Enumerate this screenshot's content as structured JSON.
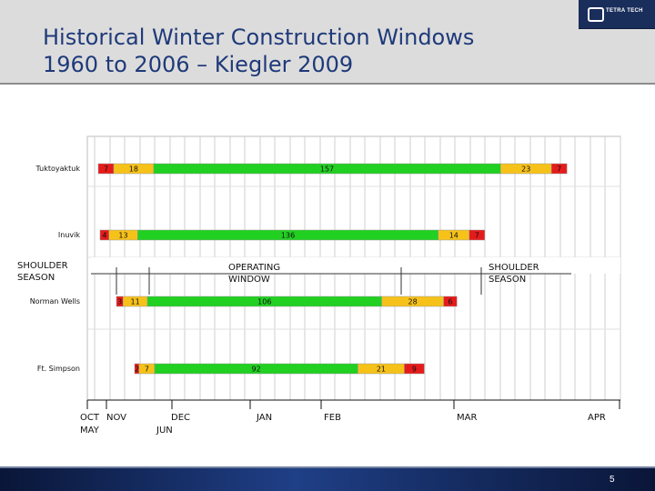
{
  "slide": {
    "title_line1": "Historical Winter Construction Windows",
    "title_line2": "1960 to 2006 – Kiegler 2009",
    "page_number": "5"
  },
  "logo": {
    "text": "TETRA TECH"
  },
  "colors": {
    "title": "#1f3a7a",
    "green": "#21d021",
    "yellow": "#f6c21a",
    "red": "#e51b1b",
    "header_band": "#dcdcdc",
    "footer_band": "#1f3f86"
  },
  "chart_data": {
    "type": "bar",
    "orientation": "horizontal-stacked",
    "grid": true,
    "categories": [
      "Tuktoyaktuk",
      "Inuvik",
      "Norman Wells",
      "Ft. Simpson"
    ],
    "rows": [
      {
        "name": "Tuktoyaktuk",
        "segments": [
          {
            "color": "red",
            "days": 7
          },
          {
            "color": "yellow",
            "days": 18
          },
          {
            "color": "green",
            "days": 157
          },
          {
            "color": "yellow",
            "days": 23
          },
          {
            "color": "red",
            "days": 7
          }
        ]
      },
      {
        "name": "Inuvik",
        "segments": [
          {
            "color": "red",
            "days": 4
          },
          {
            "color": "yellow",
            "days": 13
          },
          {
            "color": "green",
            "days": 136
          },
          {
            "color": "yellow",
            "days": 14
          },
          {
            "color": "red",
            "days": 7
          }
        ]
      },
      {
        "name": "Norman Wells",
        "segments": [
          {
            "color": "red",
            "days": 3
          },
          {
            "color": "yellow",
            "days": 11
          },
          {
            "color": "green",
            "days": 106
          },
          {
            "color": "yellow",
            "days": 28
          },
          {
            "color": "red",
            "days": 6
          }
        ]
      },
      {
        "name": "Ft. Simpson",
        "segments": [
          {
            "color": "red",
            "days": 2
          },
          {
            "color": "yellow",
            "days": 7
          },
          {
            "color": "green",
            "days": 92
          },
          {
            "color": "yellow",
            "days": 21
          },
          {
            "color": "red",
            "days": 9
          }
        ]
      }
    ],
    "x_tick_labels": [
      "OCT",
      "NOV",
      "DEC",
      "JAN",
      "FEB",
      "MAR",
      "APR",
      "MAY",
      "JUN"
    ],
    "annotations": {
      "shoulder_left": [
        "SHOULDER",
        "SEASON"
      ],
      "operating": [
        "OPERATING",
        "WINDOW"
      ],
      "shoulder_right": [
        "SHOULDER",
        "SEASON"
      ]
    }
  }
}
